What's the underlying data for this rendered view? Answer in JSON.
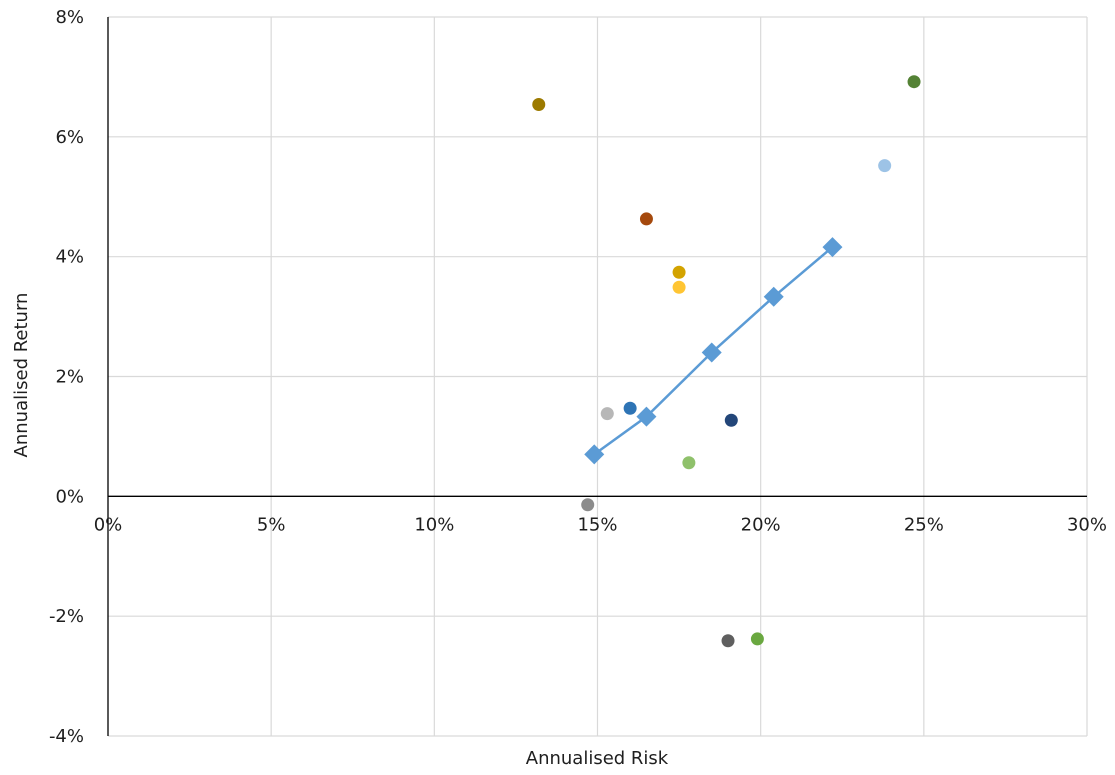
{
  "chart_data": {
    "type": "scatter",
    "title": "",
    "xlabel": "Annualised Risk",
    "ylabel": "Annualised Return",
    "xlim": [
      0,
      30
    ],
    "ylim": [
      -4,
      8
    ],
    "x_ticks": [
      0,
      5,
      10,
      15,
      20,
      25,
      30
    ],
    "y_ticks": [
      -4,
      -2,
      0,
      2,
      4,
      6,
      8
    ],
    "x_tick_labels": [
      "0%",
      "5%",
      "10%",
      "15%",
      "20%",
      "25%",
      "30%"
    ],
    "y_tick_labels": [
      "-4%",
      "-2%",
      "0%",
      "2%",
      "4%",
      "6%",
      "8%"
    ],
    "grid": true,
    "legend": "none",
    "series": [
      {
        "marker": "diamond-line",
        "color": "#5b9bd5",
        "x": [
          14.9,
          16.5,
          18.5,
          20.4,
          22.2
        ],
        "y": [
          0.7,
          1.33,
          2.4,
          3.33,
          4.16
        ]
      },
      {
        "marker": "circle",
        "points": [
          {
            "x": 13.2,
            "y": 6.54,
            "color": "#9c7a00"
          },
          {
            "x": 16.5,
            "y": 4.63,
            "color": "#a5490d"
          },
          {
            "x": 17.5,
            "y": 3.74,
            "color": "#d3a300"
          },
          {
            "x": 17.5,
            "y": 3.49,
            "color": "#ffc533"
          },
          {
            "x": 16.0,
            "y": 1.47,
            "color": "#2e74b5"
          },
          {
            "x": 15.3,
            "y": 1.38,
            "color": "#b7b7b7"
          },
          {
            "x": 19.1,
            "y": 1.27,
            "color": "#234679"
          },
          {
            "x": 17.8,
            "y": 0.56,
            "color": "#8fc16b"
          },
          {
            "x": 14.7,
            "y": -0.14,
            "color": "#8c8c8c"
          },
          {
            "x": 19.0,
            "y": -2.41,
            "color": "#5f5f5f"
          },
          {
            "x": 19.9,
            "y": -2.38,
            "color": "#6aa840"
          },
          {
            "x": 24.7,
            "y": 6.92,
            "color": "#548235"
          },
          {
            "x": 23.8,
            "y": 5.52,
            "color": "#9dc3e6"
          }
        ]
      }
    ]
  }
}
